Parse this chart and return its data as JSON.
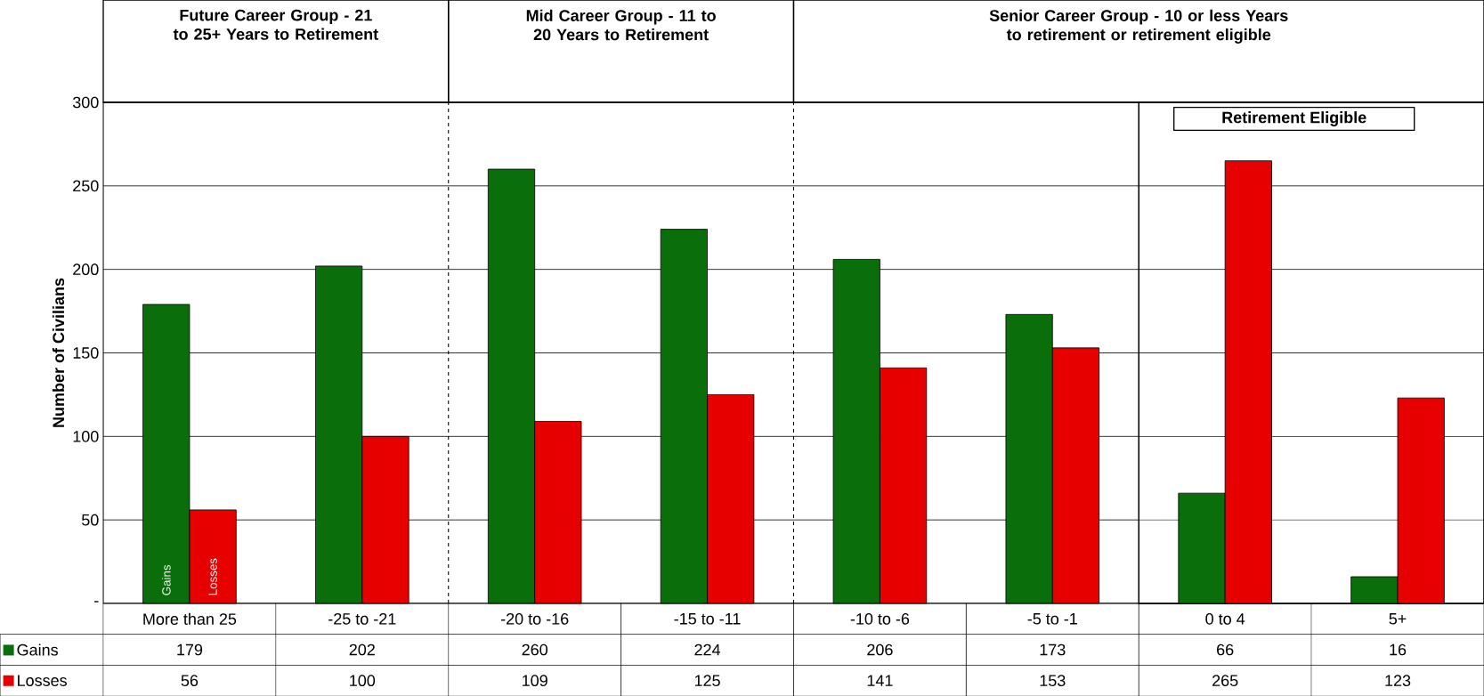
{
  "chart_data": {
    "type": "bar",
    "ylabel": "Number of Civilians",
    "categories": [
      "More than 25",
      "-25 to -21",
      "-20 to -16",
      "-15 to -11",
      "-10 to -6",
      "-5 to -1",
      "0 to 4",
      "5+"
    ],
    "series": [
      {
        "name": "Gains",
        "color": "#0a6e0a",
        "values": [
          179,
          202,
          260,
          224,
          206,
          173,
          66,
          16
        ]
      },
      {
        "name": "Losses",
        "color": "#e60000",
        "values": [
          56,
          100,
          109,
          125,
          141,
          153,
          265,
          123
        ]
      }
    ],
    "ylim": [
      0,
      300
    ],
    "yticks": [
      {
        "value": 0,
        "label": "-"
      },
      50,
      100,
      150,
      200,
      250,
      300
    ],
    "grid": "y",
    "data_labels": true,
    "legend": "bottom left",
    "annotations": [
      "Future Career Group - 21 to 25+ Years to Retirement",
      "Mid Career Group - 11 to 20 Years to Retirement",
      "Senior Career Group - 10 or less Years to retirement or retirement eligible"
    ],
    "bands": [
      {
        "axis": "x",
        "from": "0 to 4",
        "to": "5+",
        "label": "Retirement Eligible",
        "color": "#ffffff"
      }
    ]
  }
}
